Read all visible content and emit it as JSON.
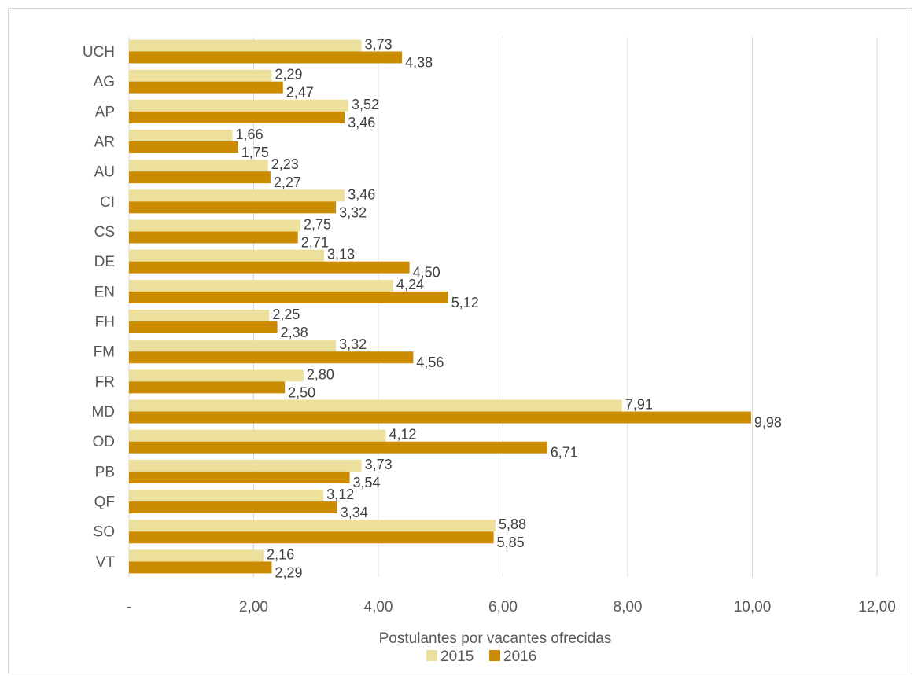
{
  "chart_data": {
    "type": "bar",
    "orientation": "horizontal",
    "categories": [
      "UCH",
      "AG",
      "AP",
      "AR",
      "AU",
      "CI",
      "CS",
      "DE",
      "EN",
      "FH",
      "FM",
      "FR",
      "MD",
      "OD",
      "PB",
      "QF",
      "SO",
      "VT"
    ],
    "series": [
      {
        "name": "2015",
        "color": "#eddf9c",
        "values": [
          3.73,
          2.29,
          3.52,
          1.66,
          2.23,
          3.46,
          2.75,
          3.13,
          4.24,
          2.25,
          3.32,
          2.8,
          7.91,
          4.12,
          3.73,
          3.12,
          5.88,
          2.16
        ],
        "labels": [
          "3,73",
          "2,29",
          "3,52",
          "1,66",
          "2,23",
          "3,46",
          "2,75",
          "3,13",
          "4,24",
          "2,25",
          "3,32",
          "2,80",
          "7,91",
          "4,12",
          "3,73",
          "3,12",
          "5,88",
          "2,16"
        ]
      },
      {
        "name": "2016",
        "color": "#cc8c00",
        "values": [
          4.38,
          2.47,
          3.46,
          1.75,
          2.27,
          3.32,
          2.71,
          4.5,
          5.12,
          2.38,
          4.56,
          2.5,
          9.98,
          6.71,
          3.54,
          3.34,
          5.85,
          2.29
        ],
        "labels": [
          "4,38",
          "2,47",
          "3,46",
          "1,75",
          "2,27",
          "3,32",
          "2,71",
          "4,50",
          "5,12",
          "2,38",
          "4,56",
          "2,50",
          "9,98",
          "6,71",
          "3,54",
          "3,34",
          "5,85",
          "2,29"
        ]
      }
    ],
    "xlabel": "Postulantes por vacantes ofrecidas",
    "xlim": [
      0,
      12
    ],
    "xticks": [
      0,
      2,
      4,
      6,
      8,
      10,
      12
    ],
    "xtick_labels": [
      "-",
      "2,00",
      "4,00",
      "6,00",
      "8,00",
      "10,00",
      "12,00"
    ],
    "grid": true,
    "grid_color": "#d9d9d9",
    "legend": "bottom"
  }
}
